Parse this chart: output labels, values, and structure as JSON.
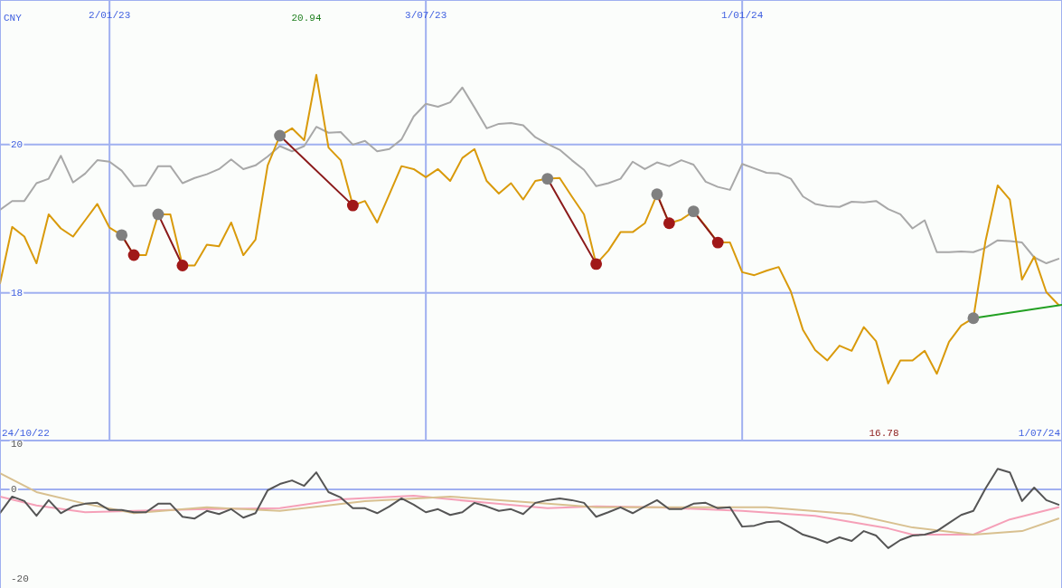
{
  "chart_data": [
    {
      "type": "line",
      "ylabel": "CNY",
      "marker": "none",
      "grid": true,
      "x": [
        "2022-10-31",
        "2022-11-07",
        "2022-11-14",
        "2022-11-21",
        "2022-11-28",
        "2022-12-05",
        "2022-12-12",
        "2022-12-19",
        "2022-12-26",
        "2023-01-02",
        "2023-01-09",
        "2023-01-16",
        "2023-01-23",
        "2023-01-30",
        "2023-02-06",
        "2023-02-13",
        "2023-02-20",
        "2023-02-27",
        "2023-03-06",
        "2023-03-13",
        "2023-03-20",
        "2023-03-27",
        "2023-04-03",
        "2023-04-10",
        "2023-04-17",
        "2023-04-24",
        "2023-05-01",
        "2023-05-08",
        "2023-05-15",
        "2023-05-22",
        "2023-05-29",
        "2023-06-05",
        "2023-06-12",
        "2023-06-19",
        "2023-06-26",
        "2023-07-03",
        "2023-07-10",
        "2023-07-17",
        "2023-07-24",
        "2023-07-31",
        "2023-08-07",
        "2023-08-14",
        "2023-08-21",
        "2023-08-28",
        "2023-09-04",
        "2023-09-11",
        "2023-09-18",
        "2023-09-25",
        "2023-10-02",
        "2023-10-09",
        "2023-10-16",
        "2023-10-23",
        "2023-10-30",
        "2023-11-06",
        "2023-11-13",
        "2023-11-20",
        "2023-11-27",
        "2023-12-04",
        "2023-12-11",
        "2023-12-18",
        "2023-12-25",
        "2024-01-01",
        "2024-01-08",
        "2024-01-15",
        "2024-01-22",
        "2024-01-29",
        "2024-02-05",
        "2024-02-12",
        "2024-02-19",
        "2024-02-26",
        "2024-03-04",
        "2024-03-11",
        "2024-03-18",
        "2024-03-25",
        "2024-04-01",
        "2024-04-08",
        "2024-04-15",
        "2024-04-22",
        "2024-04-29",
        "2024-05-06",
        "2024-05-13",
        "2024-05-20",
        "2024-05-27",
        "2024-06-03",
        "2024-06-10",
        "2024-06-17",
        "2024-06-24",
        "2024-07-01"
      ],
      "xlim": [
        "2022-10-31",
        "2024-07-03"
      ],
      "xticks": [
        {
          "value": "2023-01-02",
          "label": "2/01/23"
        },
        {
          "value": "2023-07-03",
          "label": "3/07/23"
        },
        {
          "value": "2024-01-01",
          "label": "1/01/24"
        }
      ],
      "ylim": [
        16.01,
        21.95
      ],
      "yticks": [
        18,
        20
      ],
      "series": [
        {
          "color": "#a8a8a8",
          "values": [
            19.12,
            19.24,
            19.24,
            19.48,
            19.54,
            19.85,
            19.49,
            19.61,
            19.79,
            19.77,
            19.65,
            19.44,
            19.45,
            19.71,
            19.71,
            19.48,
            19.55,
            19.6,
            19.67,
            19.8,
            19.67,
            19.72,
            19.84,
            19.98,
            19.91,
            19.98,
            20.24,
            20.16,
            20.17,
            20.0,
            20.05,
            19.91,
            19.94,
            20.07,
            20.38,
            20.55,
            20.51,
            20.57,
            20.77,
            20.5,
            20.22,
            20.28,
            20.29,
            20.26,
            20.1,
            20.01,
            19.93,
            19.79,
            19.66,
            19.44,
            19.48,
            19.54,
            19.77,
            19.67,
            19.76,
            19.71,
            19.79,
            19.73,
            19.5,
            19.43,
            19.39,
            19.74,
            19.68,
            19.62,
            19.61,
            19.54,
            19.3,
            19.2,
            19.17,
            19.16,
            19.23,
            19.22,
            19.24,
            19.13,
            19.06,
            18.87,
            18.98,
            18.55,
            18.55,
            18.56,
            18.55,
            18.61,
            18.71,
            18.7,
            18.68,
            18.48,
            18.4,
            18.46
          ]
        },
        {
          "color": "#d99a0b",
          "values": [
            18.13,
            18.89,
            18.76,
            18.4,
            19.06,
            18.87,
            18.76,
            18.98,
            19.2,
            18.88,
            18.78,
            18.51,
            18.51,
            19.06,
            19.06,
            18.37,
            18.37,
            18.65,
            18.63,
            18.95,
            18.51,
            18.72,
            19.72,
            20.12,
            20.22,
            20.06,
            20.94,
            19.96,
            19.79,
            19.18,
            19.24,
            18.95,
            19.33,
            19.71,
            19.67,
            19.56,
            19.67,
            19.51,
            19.82,
            19.94,
            19.51,
            19.34,
            19.48,
            19.26,
            19.51,
            19.54,
            19.55,
            19.3,
            19.06,
            18.39,
            18.57,
            18.82,
            18.82,
            18.94,
            19.33,
            18.94,
            18.99,
            19.1,
            18.9,
            18.68,
            18.68,
            18.28,
            18.24,
            18.3,
            18.35,
            18.02,
            17.5,
            17.23,
            17.09,
            17.29,
            17.22,
            17.54,
            17.35,
            16.78,
            17.09,
            17.09,
            17.22,
            16.91,
            17.34,
            17.56,
            17.66,
            18.7,
            19.45,
            19.26,
            18.18,
            18.49,
            18.01,
            17.84
          ]
        },
        {
          "type": "line",
          "color": "#8b1a1a",
          "x": [
            "2023-01-09",
            "2023-01-16"
          ],
          "values": [
            18.78,
            18.51
          ]
        },
        {
          "type": "line",
          "color": "#8b1a1a",
          "x": [
            "2023-01-30",
            "2023-02-13"
          ],
          "values": [
            19.06,
            18.37
          ]
        },
        {
          "type": "line",
          "color": "#8b1a1a",
          "x": [
            "2023-04-10",
            "2023-05-22"
          ],
          "values": [
            20.12,
            19.18
          ]
        },
        {
          "type": "line",
          "color": "#8b1a1a",
          "x": [
            "2023-09-11",
            "2023-10-09"
          ],
          "values": [
            19.54,
            18.39
          ]
        },
        {
          "type": "line",
          "color": "#8b1a1a",
          "x": [
            "2023-11-13",
            "2023-11-20"
          ],
          "values": [
            19.33,
            18.94
          ]
        },
        {
          "type": "line",
          "color": "#8b1a1a",
          "x": [
            "2023-12-04",
            "2023-12-18"
          ],
          "values": [
            19.1,
            18.68
          ]
        },
        {
          "type": "line",
          "color": "#22a022",
          "x": [
            "2024-05-13",
            "2024-07-03"
          ],
          "values": [
            17.66,
            17.84
          ]
        },
        {
          "type": "scatter",
          "marker": "circle",
          "color": "#808080",
          "x": [
            "2023-01-09",
            "2023-01-30",
            "2023-04-10",
            "2023-09-11",
            "2023-11-13",
            "2023-12-04",
            "2024-05-13"
          ],
          "values": [
            18.78,
            19.06,
            20.12,
            19.54,
            19.33,
            19.1,
            17.66
          ]
        },
        {
          "type": "scatter",
          "marker": "circle",
          "color": "#a01818",
          "x": [
            "2023-01-16",
            "2023-02-13",
            "2023-05-22",
            "2023-10-09",
            "2023-11-20",
            "2023-12-18"
          ],
          "values": [
            18.51,
            18.37,
            19.18,
            18.39,
            18.94,
            18.68
          ]
        }
      ],
      "annotations": [
        "20.94",
        "16.78",
        "24/10/22",
        "1/07/24"
      ]
    },
    {
      "type": "line",
      "marker": "none",
      "grid": "x",
      "tick_labels": "y",
      "x": [
        "2022-10-31",
        "2022-11-07",
        "2022-11-14",
        "2022-11-21",
        "2022-11-28",
        "2022-12-05",
        "2022-12-12",
        "2022-12-19",
        "2022-12-26",
        "2023-01-02",
        "2023-01-09",
        "2023-01-16",
        "2023-01-23",
        "2023-01-30",
        "2023-02-06",
        "2023-02-13",
        "2023-02-20",
        "2023-02-27",
        "2023-03-06",
        "2023-03-13",
        "2023-03-20",
        "2023-03-27",
        "2023-04-03",
        "2023-04-10",
        "2023-04-17",
        "2023-04-24",
        "2023-05-01",
        "2023-05-08",
        "2023-05-15",
        "2023-05-22",
        "2023-05-29",
        "2023-06-05",
        "2023-06-12",
        "2023-06-19",
        "2023-06-26",
        "2023-07-03",
        "2023-07-10",
        "2023-07-17",
        "2023-07-24",
        "2023-07-31",
        "2023-08-07",
        "2023-08-14",
        "2023-08-21",
        "2023-08-28",
        "2023-09-04",
        "2023-09-11",
        "2023-09-18",
        "2023-09-25",
        "2023-10-02",
        "2023-10-09",
        "2023-10-16",
        "2023-10-23",
        "2023-10-30",
        "2023-11-06",
        "2023-11-13",
        "2023-11-20",
        "2023-11-27",
        "2023-12-04",
        "2023-12-11",
        "2023-12-18",
        "2023-12-25",
        "2024-01-01",
        "2024-01-08",
        "2024-01-15",
        "2024-01-22",
        "2024-01-29",
        "2024-02-05",
        "2024-02-12",
        "2024-02-19",
        "2024-02-26",
        "2024-03-04",
        "2024-03-11",
        "2024-03-18",
        "2024-03-25",
        "2024-04-01",
        "2024-04-08",
        "2024-04-15",
        "2024-04-22",
        "2024-04-29",
        "2024-05-06",
        "2024-05-13",
        "2024-05-20",
        "2024-05-27",
        "2024-06-03",
        "2024-06-10",
        "2024-06-17",
        "2024-06-24",
        "2024-07-01"
      ],
      "xlim": [
        "2022-10-31",
        "2024-07-03"
      ],
      "xticks": [
        {
          "value": "2023-01-02",
          "label": null
        },
        {
          "value": "2023-07-03",
          "label": null
        },
        {
          "value": "2024-01-01",
          "label": null
        }
      ],
      "ylim": [
        -22,
        10.9
      ],
      "yticks": [
        10,
        0,
        -20
      ],
      "ref_lines": [
        {
          "axis": "y",
          "value": 0,
          "color": "#a0b0f0"
        }
      ],
      "series": [
        {
          "color": "#f5a0b8",
          "x": [
            "2022-10-31",
            "2022-11-21",
            "2022-12-19",
            "2023-01-16",
            "2023-02-27",
            "2023-04-10",
            "2023-05-15",
            "2023-06-26",
            "2023-08-07",
            "2023-09-11",
            "2023-10-09",
            "2023-11-13",
            "2024-01-01",
            "2024-02-12",
            "2024-03-25",
            "2024-04-08",
            "2024-05-13",
            "2024-06-03",
            "2024-07-01"
          ],
          "values": [
            -1.6,
            -3.6,
            -5.1,
            -4.8,
            -4.4,
            -4.2,
            -2.2,
            -1.4,
            -3.0,
            -4.2,
            -3.8,
            -4.0,
            -4.8,
            -5.9,
            -8.7,
            -10.1,
            -10.1,
            -6.7,
            -4.0
          ]
        },
        {
          "color": "#d8c090",
          "x": [
            "2022-10-31",
            "2022-11-21",
            "2022-12-19",
            "2023-01-16",
            "2023-02-27",
            "2023-04-10",
            "2023-05-29",
            "2023-07-17",
            "2023-09-11",
            "2023-10-09",
            "2023-11-13",
            "2024-01-15",
            "2024-03-04",
            "2024-04-08",
            "2024-05-13",
            "2024-06-10",
            "2024-07-01"
          ],
          "values": [
            3.6,
            -0.6,
            -3.2,
            -5.3,
            -4.0,
            -4.8,
            -2.6,
            -1.6,
            -3.2,
            -4.0,
            -4.0,
            -4.0,
            -5.5,
            -8.5,
            -10.1,
            -9.3,
            -6.5
          ]
        },
        {
          "color": "#555555",
          "values": [
            -5.3,
            -1.6,
            -2.6,
            -5.9,
            -2.4,
            -5.3,
            -3.8,
            -3.2,
            -3.0,
            -4.6,
            -4.6,
            -5.1,
            -5.1,
            -3.2,
            -3.2,
            -6.1,
            -6.5,
            -4.8,
            -5.5,
            -4.4,
            -6.3,
            -5.3,
            -0.2,
            1.2,
            2.0,
            0.8,
            3.8,
            -0.6,
            -1.8,
            -4.2,
            -4.2,
            -5.3,
            -3.8,
            -2.0,
            -3.4,
            -5.1,
            -4.4,
            -5.7,
            -5.1,
            -3.0,
            -3.8,
            -4.8,
            -4.4,
            -5.5,
            -3.0,
            -2.4,
            -2.0,
            -2.4,
            -3.0,
            -6.1,
            -5.1,
            -4.0,
            -5.3,
            -3.8,
            -2.4,
            -4.4,
            -4.4,
            -3.2,
            -3.0,
            -4.2,
            -4.0,
            -8.3,
            -8.1,
            -7.3,
            -7.1,
            -8.5,
            -10.1,
            -10.9,
            -11.9,
            -10.7,
            -11.5,
            -9.3,
            -10.3,
            -13.1,
            -11.3,
            -10.3,
            -10.1,
            -9.3,
            -7.5,
            -5.7,
            -4.8,
            0.2,
            4.6,
            3.8,
            -2.6,
            0.4,
            -2.4,
            -3.4
          ]
        }
      ]
    }
  ]
}
